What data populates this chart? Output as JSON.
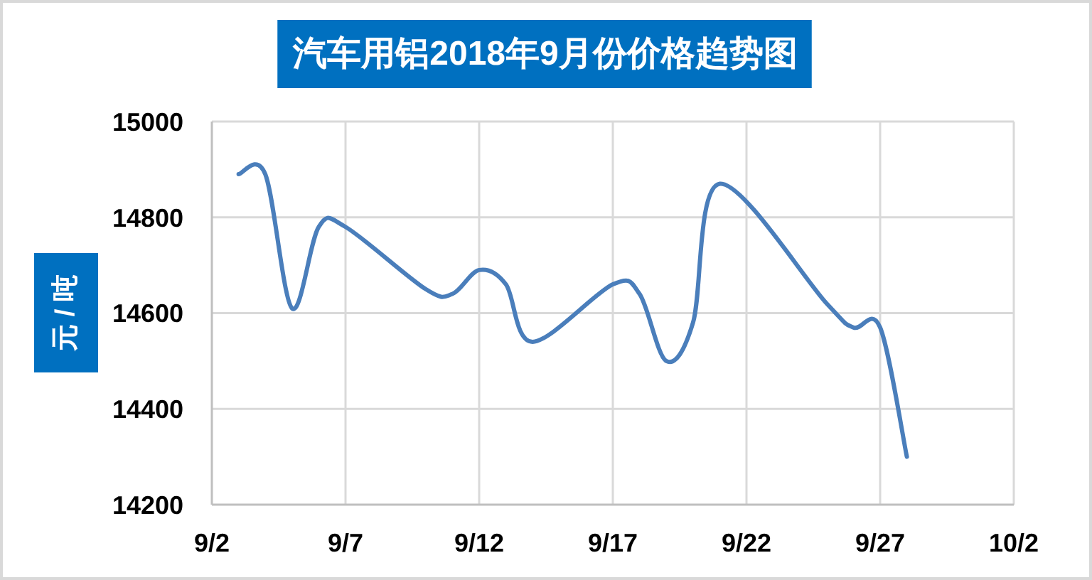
{
  "chart_data": {
    "type": "line",
    "title": "汽车用铝2018年9月份价格趋势图",
    "ylabel": "元 / 吨",
    "x": [
      "--09-03",
      "--09-04",
      "--09-05",
      "--09-06",
      "--09-07",
      "--09-10",
      "--09-11",
      "--09-12",
      "--09-13",
      "--09-14",
      "--09-17",
      "--09-18",
      "--09-19",
      "--09-20",
      "--09-21",
      "--09-25",
      "--09-26",
      "--09-27",
      "--09-28"
    ],
    "values": [
      14890,
      14890,
      14610,
      14780,
      14780,
      14650,
      14640,
      14690,
      14660,
      14540,
      14660,
      14640,
      14500,
      14580,
      14870,
      14620,
      14570,
      14570,
      14300
    ],
    "color": "#4a7ebb",
    "xlim": [
      "--09-02",
      "--10-02"
    ],
    "xticks": [
      {
        "value": "--09-02",
        "label": "9/2"
      },
      {
        "value": "--09-07",
        "label": "9/7"
      },
      {
        "value": "--09-12",
        "label": "9/12"
      },
      {
        "value": "--09-17",
        "label": "9/17"
      },
      {
        "value": "--09-22",
        "label": "9/22"
      },
      {
        "value": "--09-27",
        "label": "9/27"
      },
      {
        "value": "--10-02",
        "label": "10/2"
      }
    ],
    "ylim": [
      14200,
      15000
    ],
    "yticks": [
      14200,
      14400,
      14600,
      14800,
      15000
    ],
    "grid": true
  }
}
